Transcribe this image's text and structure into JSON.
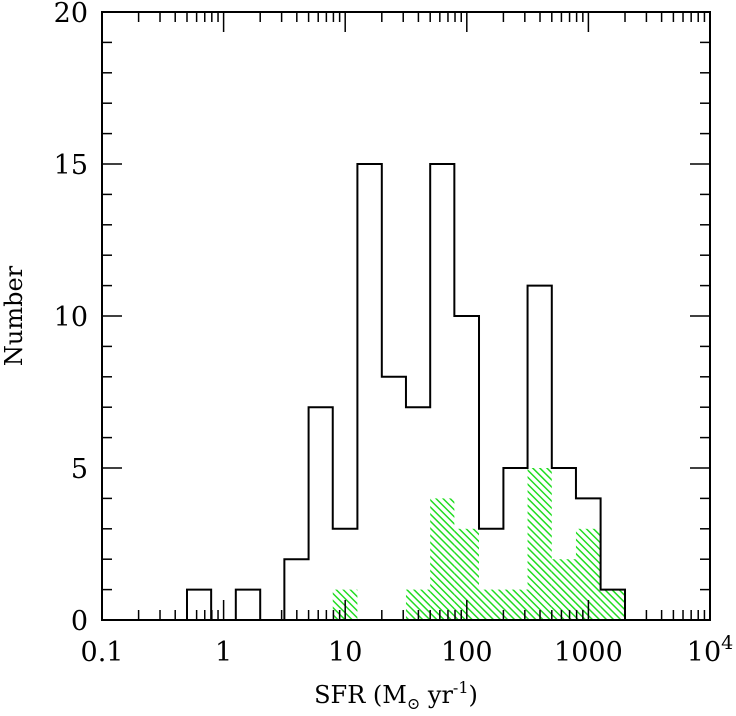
{
  "chart_data": {
    "type": "histogram",
    "xlabel": {
      "main": "SFR (M",
      "sub": "⊙",
      "unit": " yr",
      "sup": "-1",
      "close": ")"
    },
    "ylabel": "Number",
    "x_scale": "log",
    "xlim": [
      0.1,
      10000
    ],
    "ylim": [
      0,
      20
    ],
    "bin_width_dex": 0.2,
    "x_ticks": [
      {
        "value": 0.1,
        "label": "0.1"
      },
      {
        "value": 1,
        "label": "1"
      },
      {
        "value": 10,
        "label": "10"
      },
      {
        "value": 100,
        "label": "100"
      },
      {
        "value": 1000,
        "label": "1000"
      },
      {
        "value": 10000,
        "label": "10",
        "sup": "4"
      }
    ],
    "y_ticks": [
      {
        "value": 0,
        "label": "0"
      },
      {
        "value": 5,
        "label": "5"
      },
      {
        "value": 10,
        "label": "10"
      },
      {
        "value": 15,
        "label": "15"
      },
      {
        "value": 20,
        "label": "20"
      }
    ],
    "series": [
      {
        "style": "outline",
        "color": "#000000",
        "bins": [
          {
            "x0": 0.5,
            "x1": 0.79,
            "count": 1
          },
          {
            "x0": 0.79,
            "x1": 1.26,
            "count": 0
          },
          {
            "x0": 1.26,
            "x1": 2.0,
            "count": 1
          },
          {
            "x0": 2.0,
            "x1": 3.16,
            "count": 0
          },
          {
            "x0": 3.16,
            "x1": 5.0,
            "count": 2
          },
          {
            "x0": 5.0,
            "x1": 7.9,
            "count": 7
          },
          {
            "x0": 7.9,
            "x1": 12.6,
            "count": 3
          },
          {
            "x0": 12.6,
            "x1": 20.0,
            "count": 15
          },
          {
            "x0": 20.0,
            "x1": 31.6,
            "count": 8
          },
          {
            "x0": 31.6,
            "x1": 50.0,
            "count": 7
          },
          {
            "x0": 50.0,
            "x1": 79.0,
            "count": 15
          },
          {
            "x0": 79.0,
            "x1": 126.0,
            "count": 10
          },
          {
            "x0": 126.0,
            "x1": 200.0,
            "count": 3
          },
          {
            "x0": 200.0,
            "x1": 316.0,
            "count": 5
          },
          {
            "x0": 316.0,
            "x1": 500.0,
            "count": 11
          },
          {
            "x0": 500.0,
            "x1": 790.0,
            "count": 5
          },
          {
            "x0": 790.0,
            "x1": 1260.0,
            "count": 4
          },
          {
            "x0": 1260.0,
            "x1": 2000.0,
            "count": 1
          }
        ]
      },
      {
        "style": "hatched",
        "color": "#22dd22",
        "bins": [
          {
            "x0": 7.9,
            "x1": 12.6,
            "count": 1
          },
          {
            "x0": 31.6,
            "x1": 50.0,
            "count": 1
          },
          {
            "x0": 50.0,
            "x1": 79.0,
            "count": 4
          },
          {
            "x0": 79.0,
            "x1": 126.0,
            "count": 3
          },
          {
            "x0": 126.0,
            "x1": 200.0,
            "count": 1
          },
          {
            "x0": 200.0,
            "x1": 316.0,
            "count": 1
          },
          {
            "x0": 316.0,
            "x1": 500.0,
            "count": 5
          },
          {
            "x0": 500.0,
            "x1": 790.0,
            "count": 2
          },
          {
            "x0": 790.0,
            "x1": 1260.0,
            "count": 3
          },
          {
            "x0": 1260.0,
            "x1": 2000.0,
            "count": 1
          }
        ]
      }
    ]
  }
}
